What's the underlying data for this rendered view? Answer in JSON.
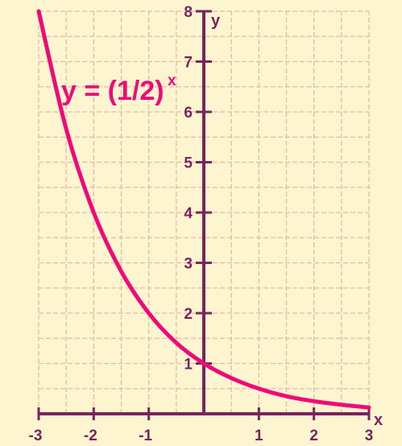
{
  "chart_data": {
    "type": "line",
    "title": "",
    "xlabel": "x",
    "ylabel": "y",
    "xlim": [
      -3,
      3
    ],
    "ylim": [
      0,
      8
    ],
    "grid": true,
    "x_ticks": [
      "-3",
      "-2",
      "-1",
      "1",
      "2",
      "3"
    ],
    "y_ticks": [
      "1",
      "2",
      "3",
      "4",
      "5",
      "6",
      "7",
      "8"
    ],
    "annotation": {
      "base": "y = (1/2)",
      "exponent": "x"
    },
    "series": [
      {
        "x": [
          -3,
          -2.5,
          -2,
          -1.5,
          -1,
          -0.5,
          0,
          0.5,
          1,
          1.5,
          2,
          2.5,
          3
        ],
        "values": [
          8,
          5.66,
          4,
          2.83,
          2,
          1.41,
          1,
          0.71,
          0.5,
          0.35,
          0.25,
          0.18,
          0.125
        ]
      }
    ],
    "colors": {
      "background": "#fdf5cf",
      "grid": "#eab8a6",
      "axis": "#7b2360",
      "curve": "#ee0a78"
    }
  }
}
